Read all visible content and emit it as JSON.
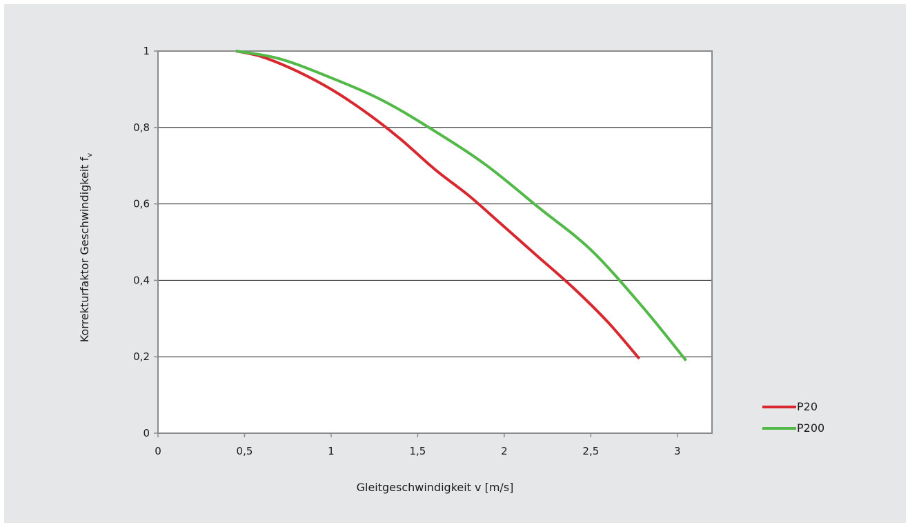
{
  "chart_data": {
    "type": "line",
    "title": "",
    "xlabel": "Gleitgeschwindigkeit v [m/s]",
    "ylabel": {
      "main": "Korrekturfaktor Geschwindigkeit f",
      "subscript": "v"
    },
    "xlim": [
      0,
      3.2
    ],
    "ylim": [
      0,
      1
    ],
    "x_ticks": [
      0,
      0.5,
      1,
      1.5,
      2,
      2.5,
      3
    ],
    "x_tick_labels": [
      "0",
      "0,5",
      "1",
      "1,5",
      "2",
      "2,5",
      "3"
    ],
    "y_ticks": [
      0,
      0.2,
      0.4,
      0.6,
      0.8,
      1
    ],
    "y_tick_labels": [
      "0",
      "0,2",
      "0,4",
      "0,6",
      "0,8",
      "1"
    ],
    "grid": "horizontal",
    "legend_position": "right-bottom",
    "series": [
      {
        "name": "P20",
        "color": "#d7282f",
        "x": [
          0.45,
          0.6,
          0.8,
          1.0,
          1.2,
          1.4,
          1.6,
          1.8,
          2.0,
          2.2,
          2.4,
          2.6,
          2.78
        ],
        "y": [
          1.0,
          0.985,
          0.948,
          0.9,
          0.84,
          0.77,
          0.69,
          0.62,
          0.54,
          0.46,
          0.38,
          0.29,
          0.195
        ]
      },
      {
        "name": "P200",
        "color": "#52b848",
        "x": [
          0.45,
          0.7,
          1.0,
          1.3,
          1.6,
          1.9,
          2.2,
          2.5,
          2.8,
          3.05
        ],
        "y": [
          1.0,
          0.98,
          0.93,
          0.87,
          0.79,
          0.7,
          0.59,
          0.48,
          0.33,
          0.19
        ]
      }
    ]
  }
}
